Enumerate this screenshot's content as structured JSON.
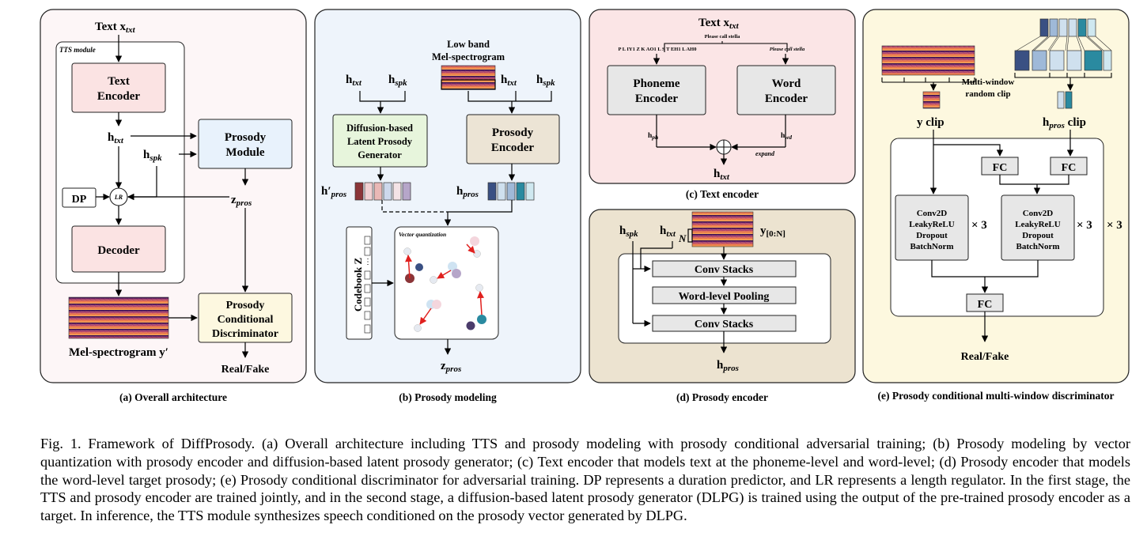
{
  "panel_a": {
    "caption": "(a) Overall architecture",
    "input_label": "Text",
    "input_var": "x",
    "input_sub": "txt",
    "tts_module_label": "TTS module",
    "text_encoder_line1": "Text",
    "text_encoder_line2": "Encoder",
    "h_txt": "h",
    "h_txt_sub": "txt",
    "h_spk": "h",
    "h_spk_sub": "spk",
    "prosody_module_line1": "Prosody",
    "prosody_module_line2": "Module",
    "z_pros": "z",
    "z_pros_sub": "pros",
    "dp_label": "DP",
    "lr_label": "LR",
    "decoder_label": "Decoder",
    "mel_label": "Mel-spectrogram y′",
    "disc_line1": "Prosody",
    "disc_line2": "Conditional",
    "disc_line3": "Discriminator",
    "output_label": "Real/Fake"
  },
  "panel_b": {
    "caption": "(b) Prosody modeling",
    "low_band_line1": "Low band",
    "low_band_line2": "Mel-spectrogram",
    "h_txt": "h",
    "h_txt_sub": "txt",
    "h_spk": "h",
    "h_spk_sub": "spk",
    "dlpg_line1": "Diffusion-based",
    "dlpg_line2": "Latent Prosody",
    "dlpg_line3": "Generator",
    "encoder_line1": "Prosody",
    "encoder_line2": "Encoder",
    "h_pros_prime": "h′",
    "h_pros_prime_sub": "pros",
    "h_pros": "h",
    "h_pros_sub": "pros",
    "codebook_label": "Codebook Z",
    "vq_label": "Vector quantization",
    "z_pros": "z",
    "z_pros_sub": "pros"
  },
  "panel_c": {
    "caption": "(c) Text encoder",
    "input_label": "Text x",
    "input_sub": "txt",
    "sample_text": "Please call stella",
    "phoneme_seq": "P L IY1 Z K AO1 L S T EH1 L AH0",
    "word_seq": "Please call stella",
    "phoneme_enc_line1": "Phoneme",
    "phoneme_enc_line2": "Encoder",
    "word_enc_line1": "Word",
    "word_enc_line2": "Encoder",
    "h_ph": "h",
    "h_ph_sub": "ph",
    "h_wd": "h",
    "h_wd_sub": "wd",
    "expand_label": "expand",
    "h_txt": "h",
    "h_txt_sub": "txt"
  },
  "panel_d": {
    "caption": "(d) Prosody encoder",
    "h_spk": "h",
    "h_spk_sub": "spk",
    "h_txt": "h",
    "h_txt_sub": "txt",
    "n_label": "N",
    "y_label": "y",
    "y_sub": "[0:N]",
    "conv1": "Conv Stacks",
    "pooling": "Word-level Pooling",
    "conv2": "Conv Stacks",
    "h_pros": "h",
    "h_pros_sub": "pros"
  },
  "panel_e": {
    "caption": "(e) Prosody conditional multi-window discriminator",
    "clip_label_line1": "Multi-window",
    "clip_label_line2": "random clip",
    "y_clip": "y clip",
    "h_pros_clip": "h",
    "h_pros_clip_sub": "pros",
    "h_pros_clip_suffix": " clip",
    "fc": "FC",
    "conv_line1": "Conv2D",
    "conv_line2": "LeakyReLU",
    "conv_line3": "Dropout",
    "conv_line4": "BatchNorm",
    "times3": "× 3",
    "output_label": "Real/Fake"
  },
  "caption": "Fig. 1.  Framework of DiffProsody. (a) Overall architecture including TTS and prosody modeling with prosody conditional adversarial training; (b) Prosody modeling by vector quantization with prosody encoder and diffusion-based latent prosody generator; (c) Text encoder that models text at the phoneme-level and word-level; (d) Prosody encoder that models the word-level target prosody; (e) Prosody conditional discriminator for adversarial training. DP represents a duration predictor, and LR represents a length regulator. In the first stage, the TTS and prosody encoder are trained jointly, and in the second stage, a diffusion-based latent prosody generator (DLPG) is trained using the output of the pre-trained prosody encoder as a target. In inference, the TTS module synthesizes speech conditioned on the prosody vector generated by DLPG.",
  "colors": {
    "panel_a_bg": "#fdf6f7",
    "panel_b_bg": "#eef4fb",
    "panel_c_bg": "#fbe5e6",
    "panel_d_bg": "#ece3d0",
    "panel_e_bg": "#fdf8df",
    "pink_box": "#fbe3e3",
    "blue_box": "#e8f2fc",
    "yellow_box": "#fdf8e0",
    "green_box": "#e7f5dc",
    "tan_box": "#ece4d5",
    "gray_box": "#e7e7e7",
    "arrow_red": "#e0201e",
    "vec_navy": "#3a5083",
    "vec_teal": "#2a8aa0",
    "vec_maroon": "#8b3538",
    "vec_lavender": "#b6a6c9"
  }
}
